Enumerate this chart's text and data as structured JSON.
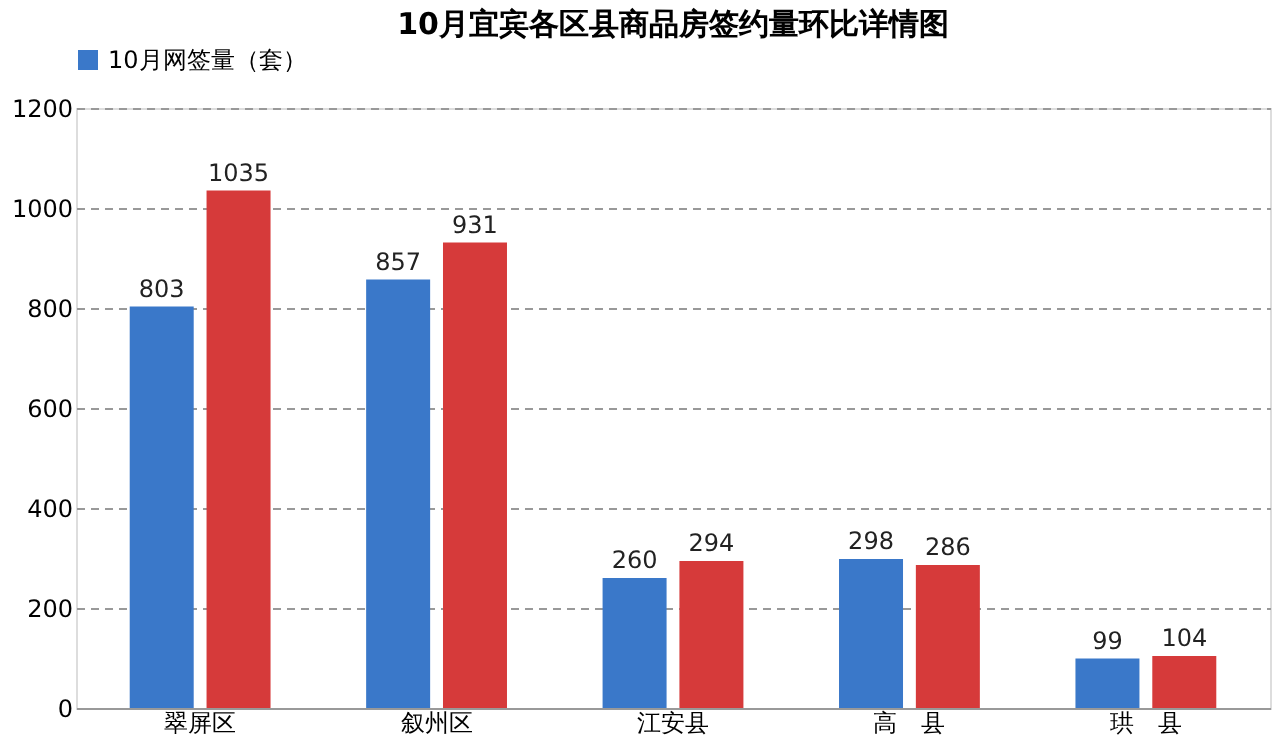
{
  "chart_data": {
    "type": "bar",
    "title": "10月宜宾各区县商品房签约量环比详情图",
    "categories": [
      "翠屏区",
      "叙州区",
      "江安县",
      "高　县",
      "珙　县"
    ],
    "series": [
      {
        "name": "10月网签量（套）",
        "color": "#3a78c9",
        "values": [
          803,
          857,
          260,
          298,
          99
        ]
      },
      {
        "color": "#d63a3a",
        "values": [
          1035,
          931,
          294,
          286,
          104
        ]
      }
    ],
    "ylim": [
      0,
      1200
    ],
    "yticks": [
      0,
      200,
      400,
      600,
      800,
      1000,
      1200
    ],
    "grid": "y",
    "legend": "top",
    "data_labels": true
  }
}
